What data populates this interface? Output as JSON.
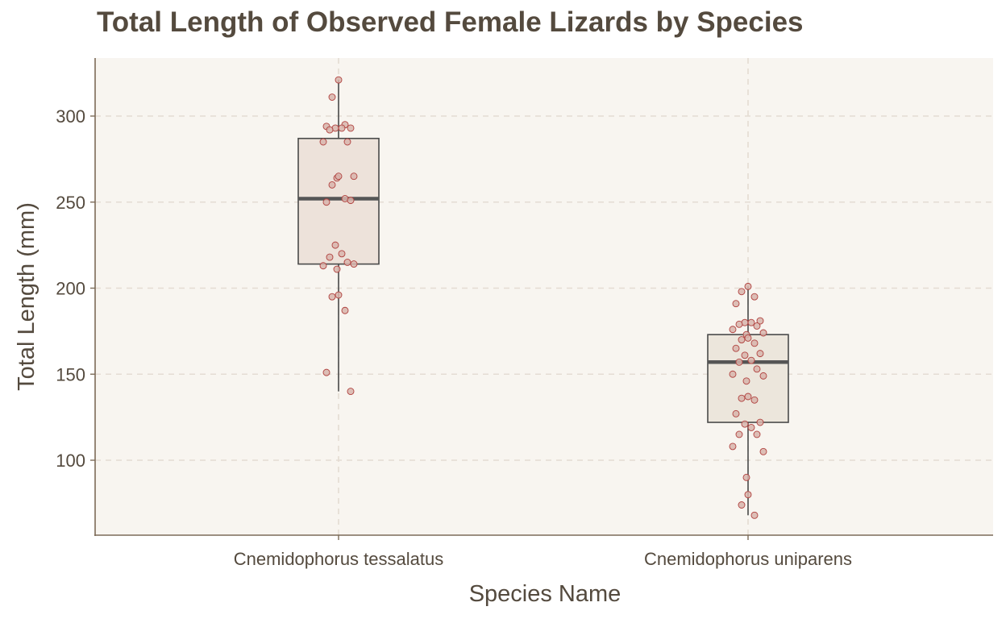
{
  "chart_data": {
    "type": "box",
    "title": "Total Length of Observed Female Lizards by Species",
    "xlabel": "Species Name",
    "ylabel": "Total Length (mm)",
    "categories": [
      "Cnemidophorus tessalatus",
      "Cnemidophorus uniparens"
    ],
    "yticks": [
      100,
      150,
      200,
      250,
      300
    ],
    "ylim": [
      62,
      334
    ],
    "grid": true,
    "boxes": [
      {
        "category": "Cnemidophorus tessalatus",
        "min": 140,
        "q1": 214,
        "median": 252,
        "q3": 287,
        "max": 321
      },
      {
        "category": "Cnemidophorus uniparens",
        "min": 68,
        "q1": 122,
        "median": 157,
        "q3": 173,
        "max": 201
      }
    ],
    "points": [
      {
        "category": "Cnemidophorus tessalatus",
        "values": [
          321,
          311,
          295,
          294,
          293,
          293,
          293,
          292,
          285,
          285,
          265,
          264,
          265,
          260,
          252,
          250,
          251,
          225,
          220,
          218,
          215,
          213,
          214,
          211,
          196,
          195,
          187,
          151,
          140
        ]
      },
      {
        "category": "Cnemidophorus uniparens",
        "values": [
          201,
          198,
          195,
          191,
          181,
          180,
          180,
          179,
          178,
          176,
          174,
          173,
          171,
          170,
          168,
          165,
          162,
          161,
          158,
          157,
          153,
          150,
          149,
          146,
          137,
          136,
          135,
          127,
          122,
          121,
          119,
          115,
          115,
          108,
          105,
          90,
          80,
          74,
          68
        ]
      }
    ],
    "colors": {
      "panel_background": "#f8f5f0",
      "grid": "#e4dcd3",
      "axis": "#7c6b58",
      "text": "#544a3e",
      "box_stroke": "#4a4a4a",
      "median": "#555555",
      "box_fill_1": "#ede2da",
      "box_fill_2": "#ece6dc",
      "point_fill": "#d8b4ab",
      "point_stroke": "#b0413e"
    }
  }
}
